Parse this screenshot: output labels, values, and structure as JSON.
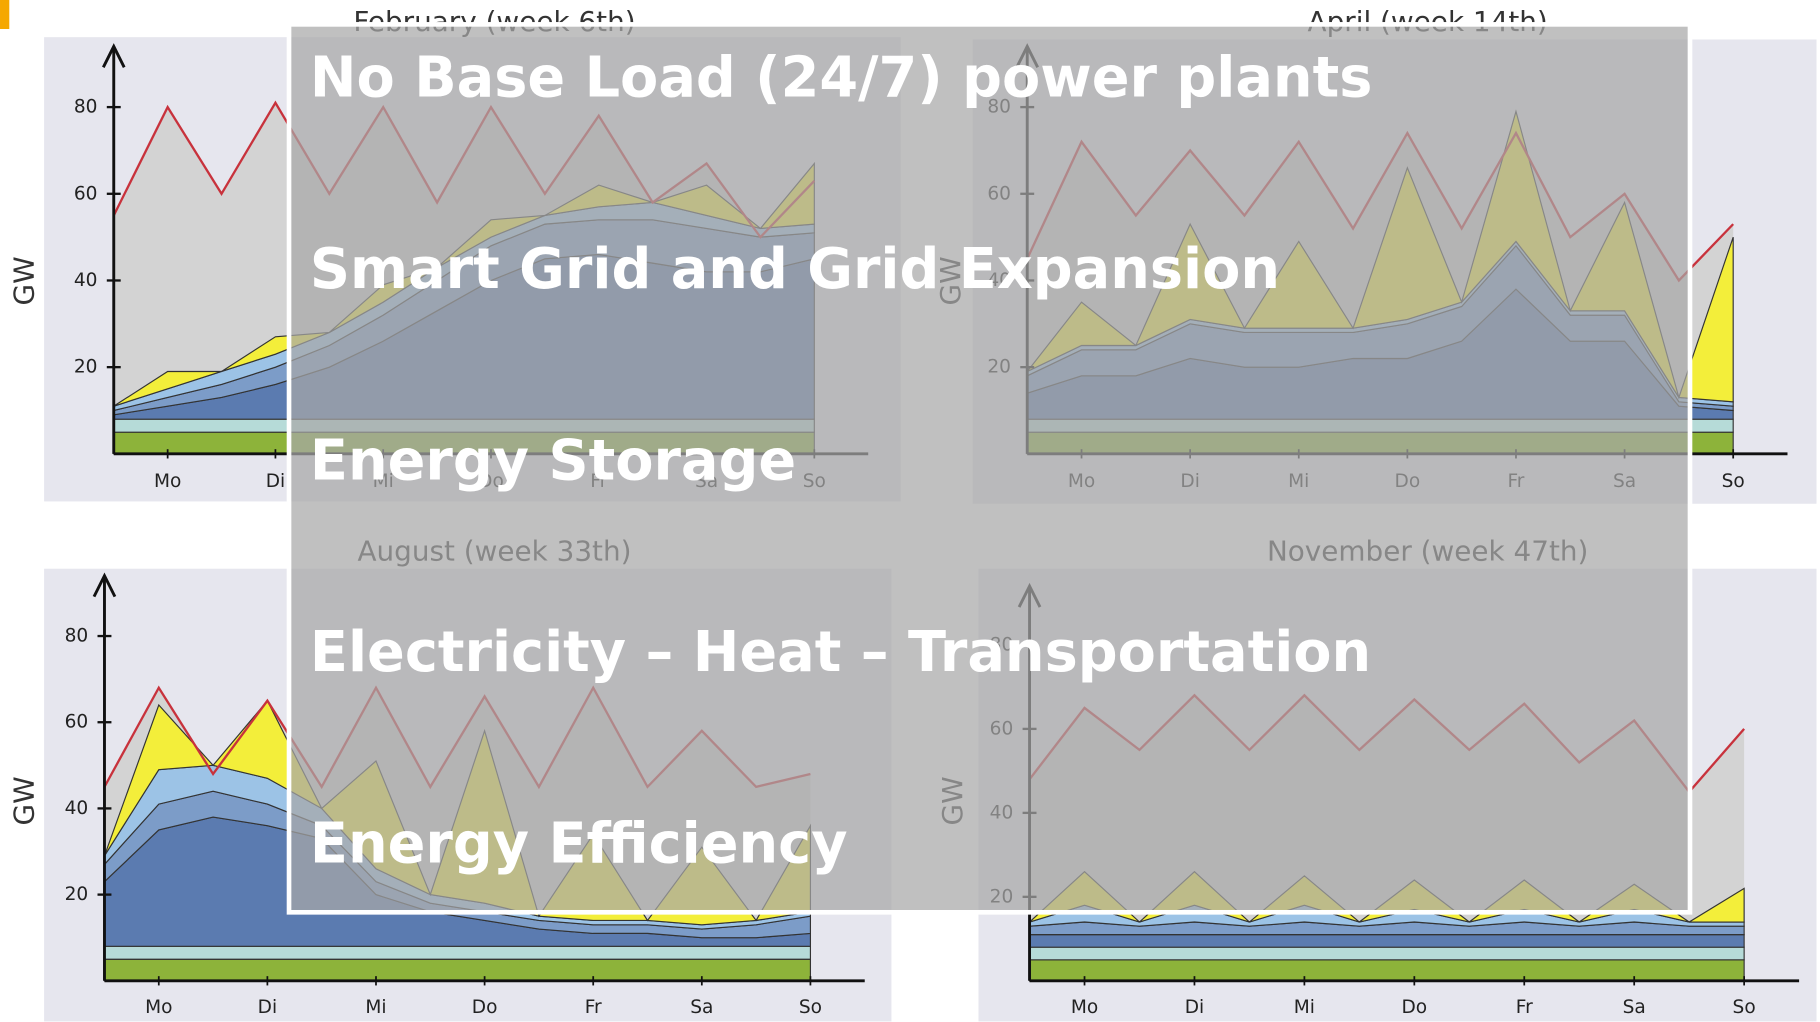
{
  "chart_data": [
    {
      "type": "area",
      "title": "February (week 6th)",
      "ylabel": "GW",
      "x": [
        0,
        0.5,
        1,
        1.5,
        2,
        2.5,
        3,
        3.5,
        4,
        4.5,
        5,
        5.5,
        6,
        6.5
      ],
      "xlim": [
        0,
        7
      ],
      "xticks": [
        {
          "value": 0.5,
          "label": "Mo"
        },
        {
          "value": 1.5,
          "label": "Di"
        },
        {
          "value": 2.5,
          "label": "Mi"
        },
        {
          "value": 3.5,
          "label": "Do"
        },
        {
          "value": 4.5,
          "label": "Fr"
        },
        {
          "value": 5.5,
          "label": "Sa"
        },
        {
          "value": 6.5,
          "label": "So"
        }
      ],
      "ylim": [
        0,
        94
      ],
      "yticks": [
        20,
        40,
        60,
        80
      ],
      "series": [
        {
          "color": "#8db33a",
          "values": [
            5,
            5,
            5,
            5,
            5,
            5,
            5,
            5,
            5,
            5,
            5,
            5,
            5,
            5
          ]
        },
        {
          "color": "#b6dbd8",
          "values": [
            3,
            3,
            3,
            3,
            3,
            3,
            3,
            3,
            3,
            3,
            3,
            3,
            3,
            3
          ]
        },
        {
          "color": "#5b7bb0",
          "values": [
            1,
            3,
            5,
            8,
            12,
            18,
            25,
            32,
            37,
            38,
            36,
            34,
            34,
            37
          ]
        },
        {
          "color": "#7c9cc8",
          "values": [
            1,
            2,
            3,
            4,
            5,
            6,
            7,
            8,
            8,
            8,
            10,
            10,
            8,
            6
          ]
        },
        {
          "color": "#9cc3e6",
          "values": [
            1,
            2,
            3,
            3,
            3,
            3,
            3,
            2,
            2,
            3,
            4,
            3,
            2,
            2
          ]
        },
        {
          "color": "#f3ee3a",
          "values": [
            0,
            4,
            0,
            4,
            0,
            4,
            0,
            4,
            0,
            5,
            0,
            7,
            0,
            14
          ]
        }
      ],
      "line": {
        "color": "#c8323c",
        "values": [
          55,
          80,
          60,
          81,
          60,
          80,
          58,
          80,
          60,
          78,
          58,
          67,
          50,
          63
        ]
      }
    },
    {
      "type": "area",
      "title": "April (week 14th)",
      "ylabel": "GW",
      "x": [
        0,
        0.5,
        1,
        1.5,
        2,
        2.5,
        3,
        3.5,
        4,
        4.5,
        5,
        5.5,
        6,
        6.5
      ],
      "xlim": [
        0,
        7
      ],
      "xticks": [
        {
          "value": 0.5,
          "label": "Mo"
        },
        {
          "value": 1.5,
          "label": "Di"
        },
        {
          "value": 2.5,
          "label": "Mi"
        },
        {
          "value": 3.5,
          "label": "Do"
        },
        {
          "value": 4.5,
          "label": "Fr"
        },
        {
          "value": 5.5,
          "label": "Sa"
        },
        {
          "value": 6.5,
          "label": "So"
        }
      ],
      "ylim": [
        0,
        94
      ],
      "yticks": [
        20,
        40,
        60,
        80
      ],
      "series": [
        {
          "color": "#8db33a",
          "values": [
            5,
            5,
            5,
            5,
            5,
            5,
            5,
            5,
            5,
            5,
            5,
            5,
            5,
            5
          ]
        },
        {
          "color": "#b6dbd8",
          "values": [
            3,
            3,
            3,
            3,
            3,
            3,
            3,
            3,
            3,
            3,
            3,
            3,
            3,
            3
          ]
        },
        {
          "color": "#5b7bb0",
          "values": [
            6,
            10,
            10,
            14,
            12,
            12,
            14,
            14,
            18,
            30,
            18,
            18,
            3,
            2
          ]
        },
        {
          "color": "#7c9cc8",
          "values": [
            4,
            6,
            6,
            8,
            8,
            8,
            6,
            8,
            8,
            10,
            6,
            6,
            1,
            1
          ]
        },
        {
          "color": "#9cc3e6",
          "values": [
            1,
            1,
            1,
            1,
            1,
            1,
            1,
            1,
            1,
            1,
            1,
            1,
            1,
            1
          ]
        },
        {
          "color": "#f3ee3a",
          "values": [
            0,
            10,
            0,
            22,
            0,
            20,
            0,
            35,
            0,
            30,
            0,
            25,
            0,
            38
          ]
        }
      ],
      "line": {
        "color": "#c8323c",
        "values": [
          45,
          72,
          55,
          70,
          55,
          72,
          52,
          74,
          52,
          74,
          50,
          60,
          40,
          53
        ]
      }
    },
    {
      "type": "area",
      "title": "August (week 33th)",
      "ylabel": "GW",
      "x": [
        0,
        0.5,
        1,
        1.5,
        2,
        2.5,
        3,
        3.5,
        4,
        4.5,
        5,
        5.5,
        6,
        6.5
      ],
      "xlim": [
        0,
        7
      ],
      "xticks": [
        {
          "value": 0.5,
          "label": "Mo"
        },
        {
          "value": 1.5,
          "label": "Di"
        },
        {
          "value": 2.5,
          "label": "Mi"
        },
        {
          "value": 3.5,
          "label": "Do"
        },
        {
          "value": 4.5,
          "label": "Fr"
        },
        {
          "value": 5.5,
          "label": "Sa"
        },
        {
          "value": 6.5,
          "label": "So"
        }
      ],
      "ylim": [
        0,
        94
      ],
      "yticks": [
        20,
        40,
        60,
        80
      ],
      "series": [
        {
          "color": "#8db33a",
          "values": [
            5,
            5,
            5,
            5,
            5,
            5,
            5,
            5,
            5,
            5,
            5,
            5,
            5,
            5
          ]
        },
        {
          "color": "#b6dbd8",
          "values": [
            3,
            3,
            3,
            3,
            3,
            3,
            3,
            3,
            3,
            3,
            3,
            3,
            3,
            3
          ]
        },
        {
          "color": "#5b7bb0",
          "values": [
            15,
            27,
            30,
            28,
            25,
            12,
            8,
            6,
            4,
            3,
            3,
            2,
            2,
            3
          ]
        },
        {
          "color": "#7c9cc8",
          "values": [
            4,
            6,
            6,
            5,
            3,
            3,
            2,
            2,
            2,
            2,
            2,
            2,
            3,
            4
          ]
        },
        {
          "color": "#9cc3e6",
          "values": [
            2,
            8,
            6,
            6,
            4,
            3,
            2,
            2,
            1,
            1,
            1,
            1,
            1,
            1
          ]
        },
        {
          "color": "#f3ee3a",
          "values": [
            0,
            15,
            0,
            18,
            0,
            25,
            0,
            40,
            0,
            20,
            0,
            18,
            0,
            20
          ]
        }
      ],
      "line": {
        "color": "#c8323c",
        "values": [
          45,
          68,
          48,
          65,
          45,
          68,
          45,
          66,
          45,
          68,
          45,
          58,
          45,
          48
        ]
      }
    },
    {
      "type": "area",
      "title": "November (week 47th)",
      "ylabel": "GW",
      "x": [
        0,
        0.5,
        1,
        1.5,
        2,
        2.5,
        3,
        3.5,
        4,
        4.5,
        5,
        5.5,
        6,
        6.5
      ],
      "xlim": [
        0,
        7
      ],
      "xticks": [
        {
          "value": 0.5,
          "label": "Mo"
        },
        {
          "value": 1.5,
          "label": "Di"
        },
        {
          "value": 2.5,
          "label": "Mi"
        },
        {
          "value": 3.5,
          "label": "Do"
        },
        {
          "value": 4.5,
          "label": "Fr"
        },
        {
          "value": 5.5,
          "label": "Sa"
        },
        {
          "value": 6.5,
          "label": "So"
        }
      ],
      "ylim": [
        0,
        94
      ],
      "yticks": [
        20,
        40,
        60,
        80
      ],
      "series": [
        {
          "color": "#8db33a",
          "values": [
            5,
            5,
            5,
            5,
            5,
            5,
            5,
            5,
            5,
            5,
            5,
            5,
            5,
            5
          ]
        },
        {
          "color": "#b6dbd8",
          "values": [
            3,
            3,
            3,
            3,
            3,
            3,
            3,
            3,
            3,
            3,
            3,
            3,
            3,
            3
          ]
        },
        {
          "color": "#5b7bb0",
          "values": [
            3,
            3,
            3,
            3,
            3,
            3,
            3,
            3,
            3,
            3,
            3,
            3,
            3,
            3
          ]
        },
        {
          "color": "#7c9cc8",
          "values": [
            2,
            3,
            2,
            3,
            2,
            3,
            2,
            3,
            2,
            3,
            2,
            3,
            2,
            2
          ]
        },
        {
          "color": "#9cc3e6",
          "values": [
            1,
            4,
            1,
            4,
            1,
            4,
            1,
            3,
            1,
            3,
            1,
            3,
            1,
            1
          ]
        },
        {
          "color": "#f3ee3a",
          "values": [
            0,
            8,
            0,
            8,
            0,
            7,
            0,
            7,
            0,
            7,
            0,
            6,
            0,
            8
          ]
        }
      ],
      "line": {
        "color": "#c8323c",
        "values": [
          48,
          65,
          55,
          68,
          55,
          68,
          55,
          67,
          55,
          66,
          52,
          62,
          45,
          60
        ]
      }
    }
  ],
  "overlay": {
    "items": [
      "No Base Load (24/7) power plants",
      "Smart Grid and Grid Expansion",
      "Energy Storage",
      "Electricity – Heat – Transportation",
      "Energy Efficiency"
    ]
  }
}
